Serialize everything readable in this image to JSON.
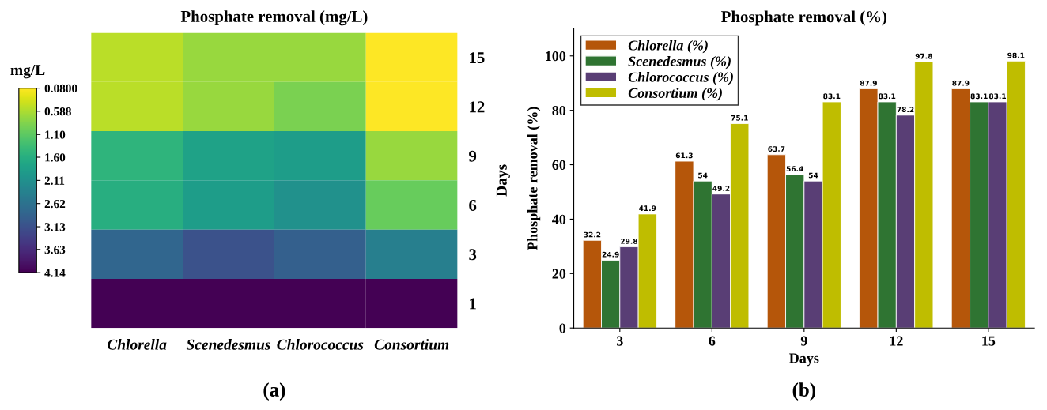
{
  "chart_data": [
    {
      "type": "heatmap",
      "title": "Phosphate removal (mg/L)",
      "ylabel": "Days",
      "clabel": "mg/L",
      "categories": [
        "Chlorella",
        "Scenedesmus",
        "Chlorococcus",
        "Consortium"
      ],
      "y_categories": [
        "15",
        "12",
        "9",
        "6",
        "3",
        "1"
      ],
      "cells": [
        [
          0.5,
          0.7,
          0.7,
          0.08
        ],
        [
          0.5,
          0.7,
          0.9,
          0.09
        ],
        [
          1.5,
          1.8,
          1.9,
          0.7
        ],
        [
          1.6,
          1.9,
          2.1,
          1.03
        ],
        [
          2.81,
          3.11,
          2.91,
          2.41
        ],
        [
          4.14,
          4.14,
          4.14,
          4.14
        ]
      ],
      "clim": [
        4.14,
        0.08
      ],
      "cticks": [
        {
          "value": 0.08,
          "label": "0.0800"
        },
        {
          "value": 0.588,
          "label": "0.588"
        },
        {
          "value": 1.1,
          "label": "1.10"
        },
        {
          "value": 1.6,
          "label": "1.60"
        },
        {
          "value": 2.11,
          "label": "2.11"
        },
        {
          "value": 2.62,
          "label": "2.62"
        },
        {
          "value": 3.13,
          "label": "3.13"
        },
        {
          "value": 3.63,
          "label": "3.63"
        },
        {
          "value": 4.14,
          "label": "4.14"
        }
      ],
      "annotations": [
        "(a)"
      ]
    },
    {
      "type": "bar",
      "title": "Phosphate removal (%)",
      "xlabel": "Days",
      "ylabel": "Phosphate removal (%)",
      "categories": [
        "3",
        "6",
        "9",
        "12",
        "15"
      ],
      "series": [
        {
          "name": "Chlorella (%)",
          "color": "#b5560a",
          "values": [
            32.2,
            61.3,
            63.7,
            87.9,
            87.9
          ]
        },
        {
          "name": "Scenedesmus (%)",
          "color": "#2f7432",
          "values": [
            24.9,
            54,
            56.4,
            83.1,
            83.1
          ]
        },
        {
          "name": "Chlorococcus (%)",
          "color": "#593e75",
          "values": [
            29.8,
            49.2,
            54,
            78.2,
            83.1
          ]
        },
        {
          "name": "Consortium (%)",
          "color": "#bfbd00",
          "values": [
            41.9,
            75.1,
            83.1,
            97.8,
            98.1
          ]
        }
      ],
      "ylim": [
        0,
        110
      ],
      "yticks": [
        0,
        20,
        40,
        60,
        80,
        100
      ],
      "data_labels": true,
      "legend": "top left",
      "grid": false,
      "annotations": [
        "(b)"
      ]
    }
  ]
}
